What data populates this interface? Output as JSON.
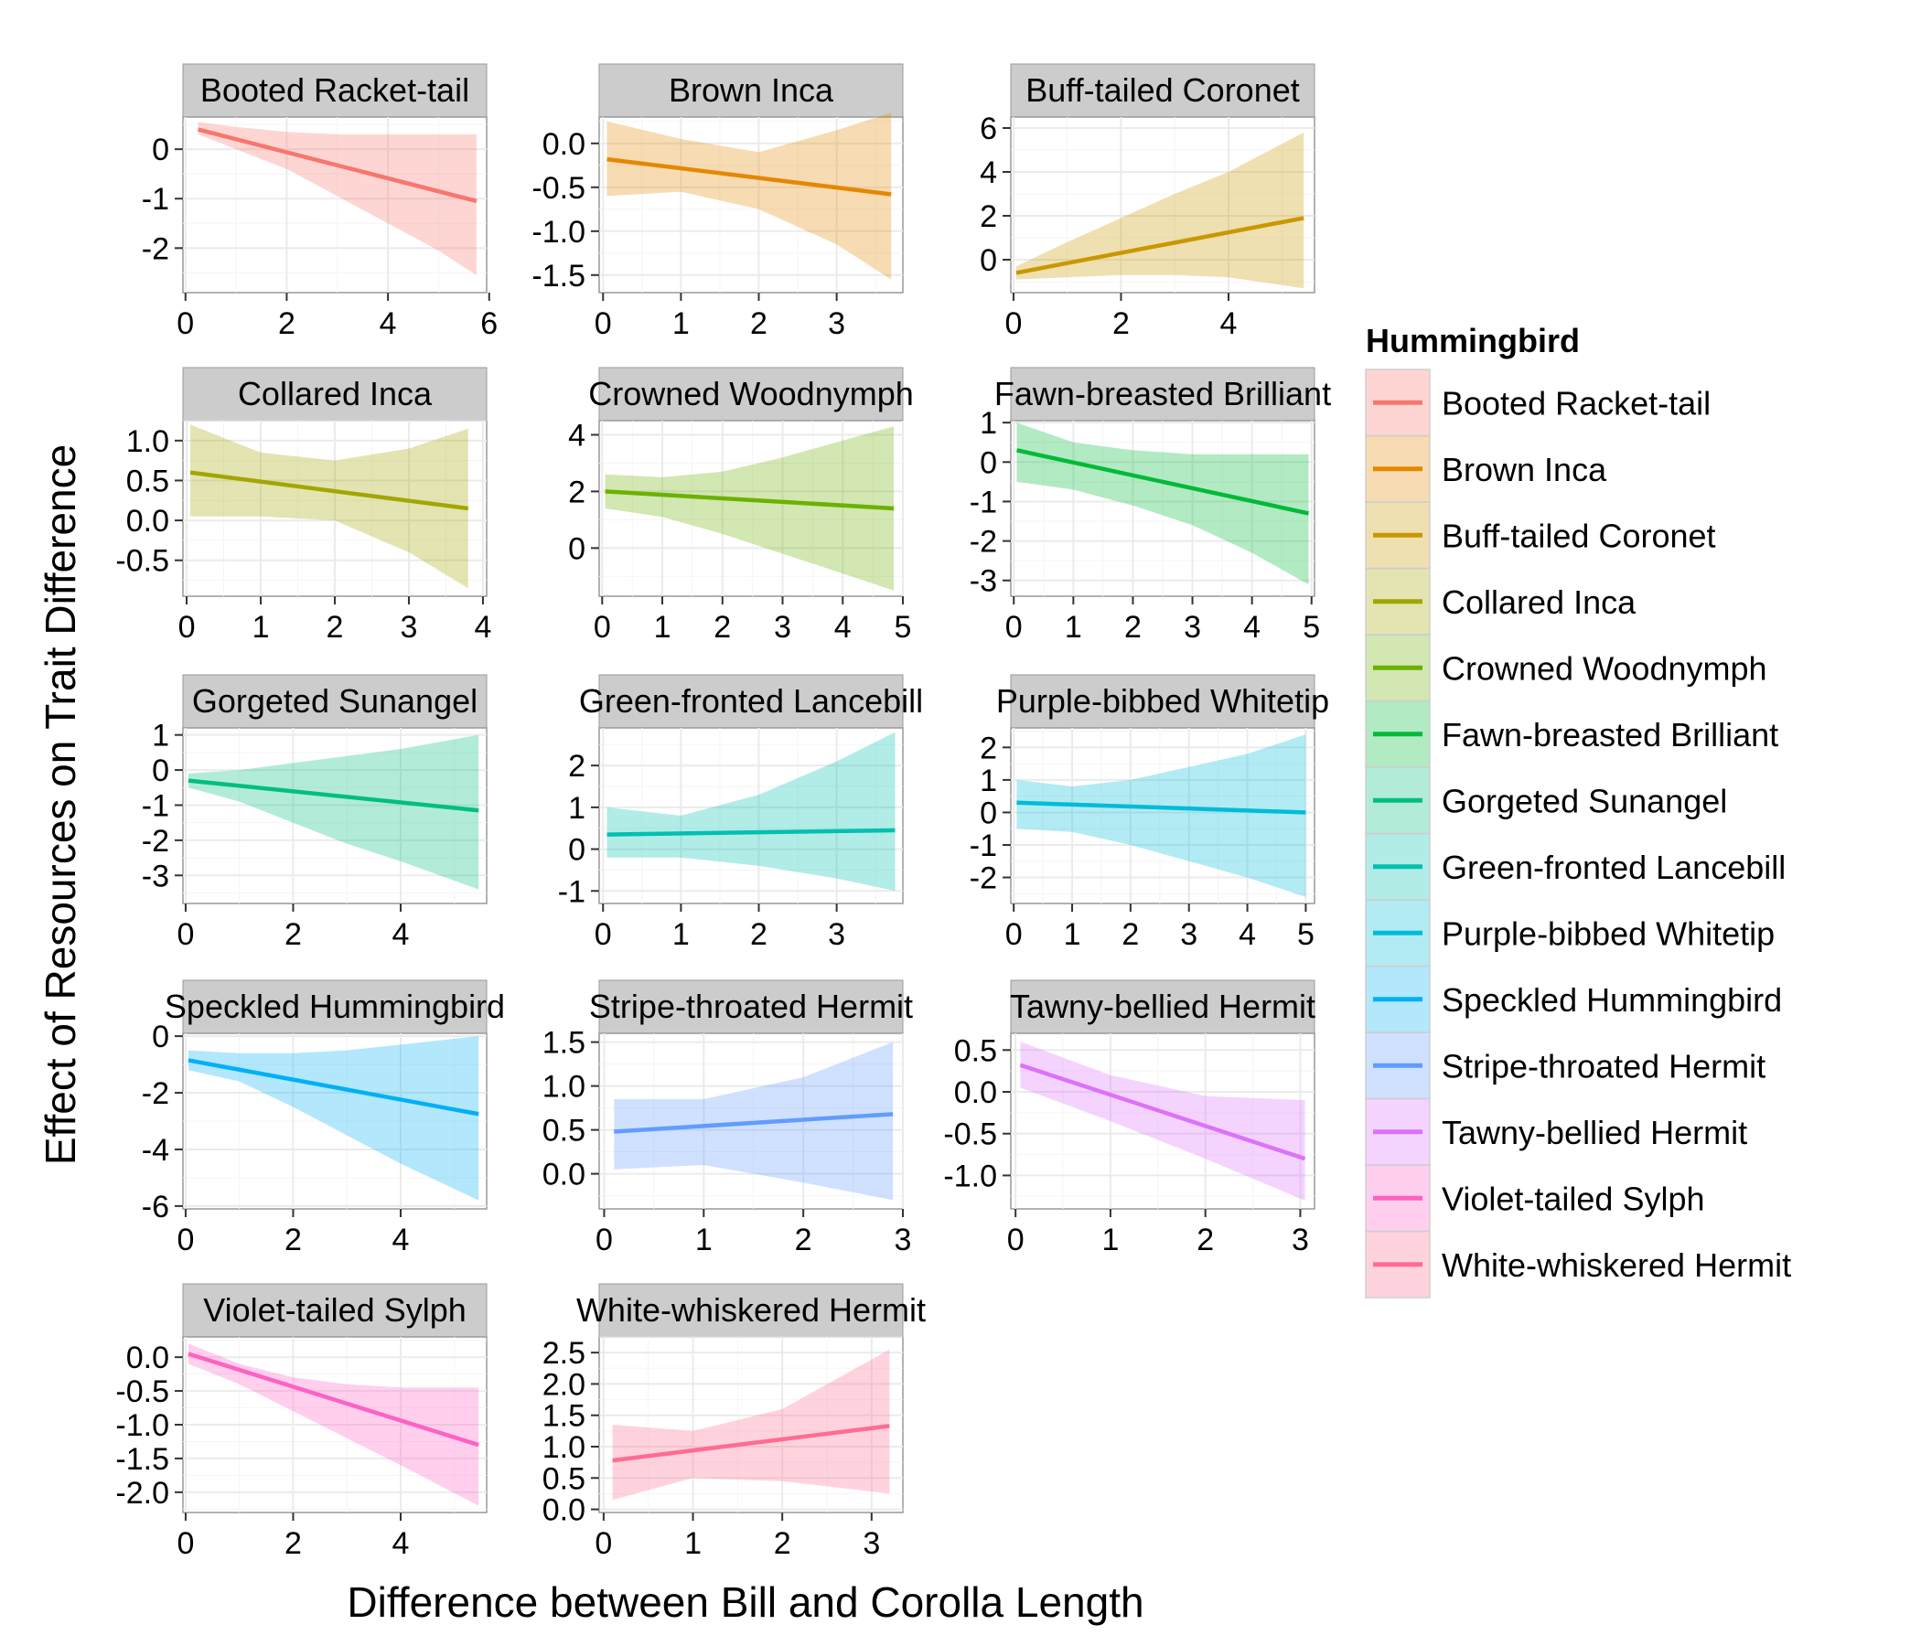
{
  "chart_data": {
    "type": "line",
    "xlabel": "Difference between Bill and Corolla Length",
    "ylabel": "Effect of Resources on Trait Difference",
    "legend_title": "Hummingbird",
    "legend_position": "right",
    "grid": true,
    "panels": [
      {
        "name": "Booted Racket-tail",
        "color": "#F8766D",
        "xlim": [
          -0.05,
          5.95
        ],
        "ylim": [
          -2.9,
          0.65
        ],
        "xticks": [
          0,
          2,
          4,
          6
        ],
        "yticks": [
          0,
          -1,
          -2
        ],
        "line": {
          "x": [
            0.25,
            5.75
          ],
          "y": [
            0.4,
            -1.05
          ]
        },
        "band": {
          "x": [
            0.25,
            1,
            2,
            3,
            4,
            5,
            5.75
          ],
          "upper": [
            0.55,
            0.45,
            0.35,
            0.3,
            0.3,
            0.3,
            0.3
          ],
          "lower": [
            0.3,
            0.0,
            -0.4,
            -0.95,
            -1.5,
            -2.05,
            -2.55
          ]
        }
      },
      {
        "name": "Brown Inca",
        "color": "#E58700",
        "xlim": [
          -0.05,
          3.85
        ],
        "ylim": [
          -1.7,
          0.3
        ],
        "xticks": [
          0,
          1,
          2,
          3
        ],
        "yticks": [
          0.0,
          -0.5,
          -1.0,
          -1.5
        ],
        "line": {
          "x": [
            0.05,
            3.7
          ],
          "y": [
            -0.18,
            -0.58
          ]
        },
        "band": {
          "x": [
            0.05,
            1,
            2,
            3,
            3.7
          ],
          "upper": [
            0.25,
            0.05,
            -0.1,
            0.15,
            0.35
          ],
          "lower": [
            -0.6,
            -0.55,
            -0.75,
            -1.15,
            -1.55
          ]
        }
      },
      {
        "name": "Buff-tailed Coronet",
        "color": "#C99800",
        "xlim": [
          -0.05,
          5.6
        ],
        "ylim": [
          -1.5,
          6.5
        ],
        "xticks": [
          0,
          2,
          4
        ],
        "yticks": [
          6,
          4,
          2,
          0
        ],
        "line": {
          "x": [
            0.05,
            5.4
          ],
          "y": [
            -0.6,
            1.9
          ]
        },
        "band": {
          "x": [
            0.05,
            1,
            2,
            3,
            4,
            5.4
          ],
          "upper": [
            -0.3,
            0.8,
            1.9,
            3.0,
            4.0,
            5.8
          ],
          "lower": [
            -0.9,
            -0.8,
            -0.7,
            -0.7,
            -0.8,
            -1.3
          ]
        }
      },
      {
        "name": "Collared Inca",
        "color": "#A3A500",
        "xlim": [
          -0.05,
          4.05
        ],
        "ylim": [
          -0.95,
          1.25
        ],
        "xticks": [
          0,
          1,
          2,
          3,
          4
        ],
        "yticks": [
          1.0,
          0.5,
          0.0,
          -0.5
        ],
        "line": {
          "x": [
            0.05,
            3.8
          ],
          "y": [
            0.6,
            0.15
          ]
        },
        "band": {
          "x": [
            0.05,
            1,
            2,
            3,
            3.8
          ],
          "upper": [
            1.2,
            0.85,
            0.75,
            0.9,
            1.15
          ],
          "lower": [
            0.05,
            0.05,
            0.0,
            -0.4,
            -0.85
          ]
        }
      },
      {
        "name": "Crowned Woodnymph",
        "color": "#6BB100",
        "xlim": [
          -0.05,
          5.0
        ],
        "ylim": [
          -1.7,
          4.5
        ],
        "xticks": [
          0,
          1,
          2,
          3,
          4,
          5
        ],
        "yticks": [
          4,
          2,
          0
        ],
        "line": {
          "x": [
            0.05,
            4.85
          ],
          "y": [
            2.0,
            1.4
          ]
        },
        "band": {
          "x": [
            0.05,
            1,
            2,
            3,
            4,
            4.85
          ],
          "upper": [
            2.6,
            2.5,
            2.7,
            3.2,
            3.8,
            4.3
          ],
          "lower": [
            1.4,
            1.1,
            0.5,
            -0.2,
            -0.9,
            -1.5
          ]
        }
      },
      {
        "name": "Fawn-breasted Brilliant",
        "color": "#00BA38",
        "xlim": [
          -0.05,
          5.05
        ],
        "ylim": [
          -3.4,
          1.05
        ],
        "xticks": [
          0,
          1,
          2,
          3,
          4,
          5
        ],
        "yticks": [
          1,
          0,
          -1,
          -2,
          -3
        ],
        "line": {
          "x": [
            0.05,
            4.95
          ],
          "y": [
            0.3,
            -1.3
          ]
        },
        "band": {
          "x": [
            0.05,
            1,
            2,
            3,
            4,
            4.95
          ],
          "upper": [
            1.0,
            0.5,
            0.3,
            0.2,
            0.2,
            0.2
          ],
          "lower": [
            -0.5,
            -0.7,
            -1.1,
            -1.6,
            -2.3,
            -3.1
          ]
        }
      },
      {
        "name": "Gorgeted Sunangel",
        "color": "#00BF7D",
        "xlim": [
          -0.05,
          5.6
        ],
        "ylim": [
          -3.8,
          1.2
        ],
        "xticks": [
          0,
          2,
          4
        ],
        "yticks": [
          1,
          0,
          -1,
          -2,
          -3
        ],
        "line": {
          "x": [
            0.05,
            5.45
          ],
          "y": [
            -0.3,
            -1.15
          ]
        },
        "band": {
          "x": [
            0.05,
            1,
            2,
            3,
            4,
            5.45
          ],
          "upper": [
            -0.1,
            0.0,
            0.2,
            0.4,
            0.6,
            1.0
          ],
          "lower": [
            -0.5,
            -0.9,
            -1.5,
            -2.1,
            -2.6,
            -3.4
          ]
        }
      },
      {
        "name": "Green-fronted Lancebill",
        "color": "#00C0AF",
        "xlim": [
          -0.05,
          3.85
        ],
        "ylim": [
          -1.3,
          2.9
        ],
        "xticks": [
          0,
          1,
          2,
          3
        ],
        "yticks": [
          2,
          1,
          0,
          -1
        ],
        "line": {
          "x": [
            0.05,
            3.75
          ],
          "y": [
            0.35,
            0.45
          ]
        },
        "band": {
          "x": [
            0.05,
            1,
            2,
            3,
            3.75
          ],
          "upper": [
            1.0,
            0.8,
            1.3,
            2.1,
            2.8
          ],
          "lower": [
            -0.2,
            -0.2,
            -0.4,
            -0.7,
            -1.0
          ]
        }
      },
      {
        "name": "Purple-bibbed Whitetip",
        "color": "#00BCD8",
        "xlim": [
          -0.05,
          5.15
        ],
        "ylim": [
          -2.8,
          2.6
        ],
        "xticks": [
          0,
          1,
          2,
          3,
          4,
          5
        ],
        "yticks": [
          2,
          1,
          0,
          -1,
          -2
        ],
        "line": {
          "x": [
            0.05,
            5.0
          ],
          "y": [
            0.3,
            0.0
          ]
        },
        "band": {
          "x": [
            0.05,
            1,
            2,
            3,
            4,
            5.0
          ],
          "upper": [
            1.0,
            0.8,
            1.0,
            1.4,
            1.8,
            2.4
          ],
          "lower": [
            -0.5,
            -0.6,
            -1.0,
            -1.5,
            -2.0,
            -2.6
          ]
        }
      },
      {
        "name": "Speckled Hummingbird",
        "color": "#00B0F6",
        "xlim": [
          -0.05,
          5.6
        ],
        "ylim": [
          -6.1,
          0.1
        ],
        "xticks": [
          0,
          2,
          4
        ],
        "yticks": [
          0,
          -2,
          -4,
          -6
        ],
        "line": {
          "x": [
            0.05,
            5.45
          ],
          "y": [
            -0.85,
            -2.75
          ]
        },
        "band": {
          "x": [
            0.05,
            1,
            2,
            3,
            4,
            5.45
          ],
          "upper": [
            -0.5,
            -0.6,
            -0.6,
            -0.5,
            -0.3,
            0.0
          ],
          "lower": [
            -1.2,
            -1.6,
            -2.5,
            -3.5,
            -4.5,
            -5.8
          ]
        }
      },
      {
        "name": "Stripe-throated Hermit",
        "color": "#619CFF",
        "xlim": [
          -0.05,
          3.0
        ],
        "ylim": [
          -0.4,
          1.6
        ],
        "xticks": [
          0,
          1,
          2,
          3
        ],
        "yticks": [
          1.5,
          1.0,
          0.5,
          0.0
        ],
        "line": {
          "x": [
            0.1,
            2.9
          ],
          "y": [
            0.48,
            0.68
          ]
        },
        "band": {
          "x": [
            0.1,
            1,
            2,
            2.9
          ],
          "upper": [
            0.85,
            0.85,
            1.1,
            1.5
          ],
          "lower": [
            0.05,
            0.1,
            -0.1,
            -0.3
          ]
        }
      },
      {
        "name": "Tawny-bellied Hermit",
        "color": "#DB72FB",
        "xlim": [
          -0.05,
          3.15
        ],
        "ylim": [
          -1.4,
          0.7
        ],
        "xticks": [
          0,
          1,
          2,
          3
        ],
        "yticks": [
          0.5,
          0.0,
          -0.5,
          -1.0
        ],
        "line": {
          "x": [
            0.05,
            3.05
          ],
          "y": [
            0.32,
            -0.8
          ]
        },
        "band": {
          "x": [
            0.05,
            1,
            2,
            3.05
          ],
          "upper": [
            0.6,
            0.2,
            -0.05,
            -0.1
          ],
          "lower": [
            0.05,
            -0.35,
            -0.8,
            -1.3
          ]
        }
      },
      {
        "name": "Violet-tailed Sylph",
        "color": "#FF61C3",
        "xlim": [
          -0.05,
          5.6
        ],
        "ylim": [
          -2.3,
          0.3
        ],
        "xticks": [
          0,
          2,
          4
        ],
        "yticks": [
          0.0,
          -0.5,
          -1.0,
          -1.5,
          -2.0
        ],
        "line": {
          "x": [
            0.05,
            5.45
          ],
          "y": [
            0.05,
            -1.3
          ]
        },
        "band": {
          "x": [
            0.05,
            1,
            2,
            3,
            4,
            5.45
          ],
          "upper": [
            0.2,
            -0.1,
            -0.3,
            -0.4,
            -0.45,
            -0.45
          ],
          "lower": [
            -0.1,
            -0.4,
            -0.8,
            -1.2,
            -1.6,
            -2.2
          ]
        }
      },
      {
        "name": "White-whiskered Hermit",
        "color": "#FF6C91",
        "xlim": [
          -0.05,
          3.35
        ],
        "ylim": [
          -0.05,
          2.75
        ],
        "xticks": [
          0,
          1,
          2,
          3
        ],
        "yticks": [
          2.5,
          2.0,
          1.5,
          1.0,
          0.5,
          0.0
        ],
        "line": {
          "x": [
            0.1,
            3.2
          ],
          "y": [
            0.78,
            1.33
          ]
        },
        "band": {
          "x": [
            0.1,
            1,
            2,
            3.2
          ],
          "upper": [
            1.35,
            1.25,
            1.6,
            2.55
          ],
          "lower": [
            0.15,
            0.5,
            0.45,
            0.25
          ]
        }
      }
    ]
  }
}
